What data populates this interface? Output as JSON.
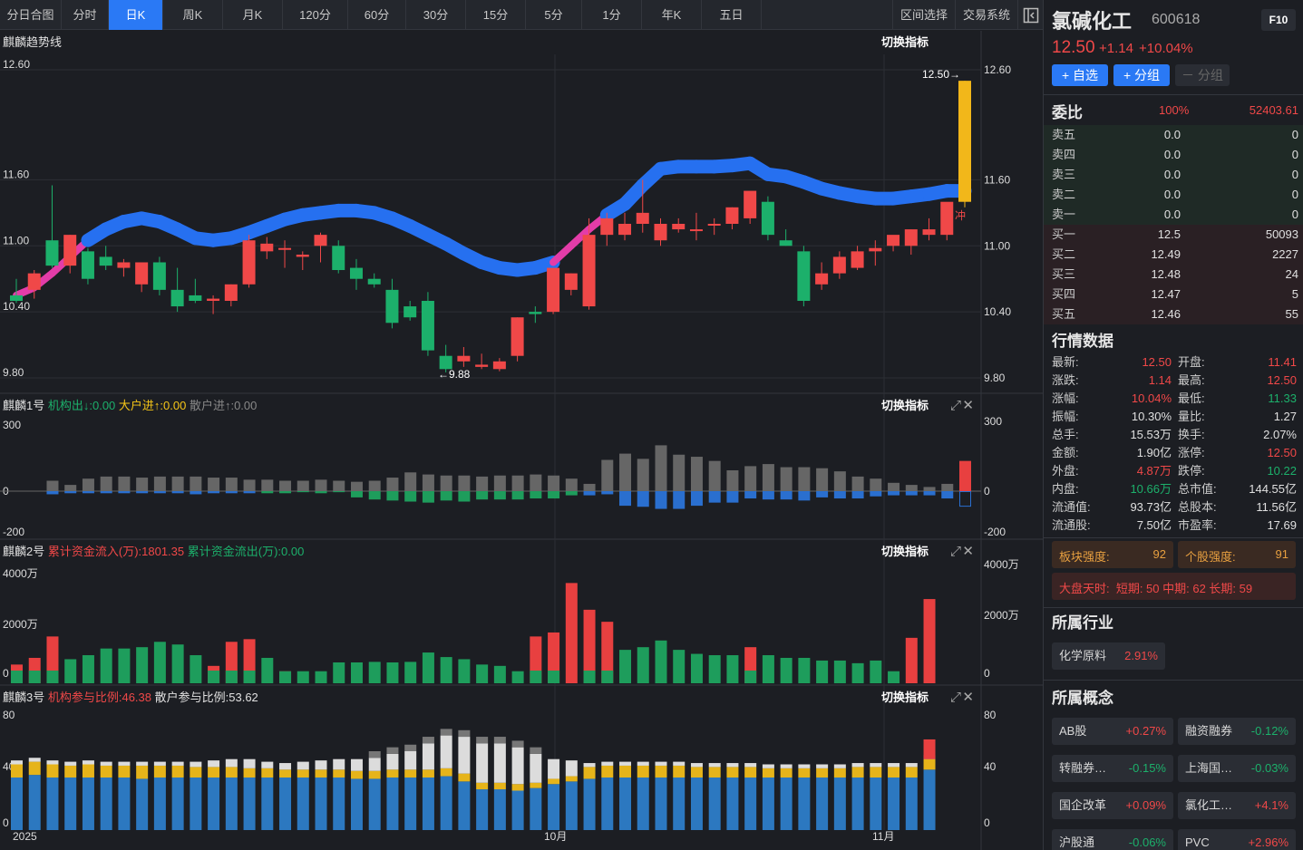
{
  "tabs": [
    "分日合图",
    "分时",
    "日K",
    "周K",
    "月K",
    "120分",
    "60分",
    "30分",
    "15分",
    "5分",
    "1分",
    "年K",
    "五日"
  ],
  "active_tab": "日K",
  "right_tabs": [
    "区间选择",
    "交易系统"
  ],
  "panels": {
    "p1": {
      "title": "麒麟趋势线",
      "switch": "切换指标",
      "yticks": [
        "12.60",
        "11.60",
        "11.00",
        "10.40",
        "9.80"
      ],
      "hi_label": "12.50→",
      "lo_label": "←9.88",
      "tag": "冲"
    },
    "p2": {
      "title": "麒麟1号",
      "s1": "机构出↓:0.00",
      "s2": "大户进↑:0.00",
      "s3": "散户进↑:0.00",
      "switch": "切换指标",
      "yticks": [
        "300",
        "0",
        "-200"
      ]
    },
    "p3": {
      "title": "麒麟2号",
      "s1": "累计资金流入(万):1801.35",
      "s2": "累计资金流出(万):0.00",
      "switch": "切换指标",
      "yticks": [
        "4000万",
        "2000万",
        "0"
      ]
    },
    "p4": {
      "title": "麒麟3号",
      "s1": "机构参与比例:46.38",
      "s2": "散户参与比例:53.62",
      "switch": "切换指标",
      "yticks": [
        "80",
        "40",
        "0"
      ]
    }
  },
  "xaxis": [
    "2025",
    "10月",
    "11月"
  ],
  "stock": {
    "name": "氯碱化工",
    "code": "600618",
    "f10": "F10",
    "price": "12.50",
    "change": "+1.14",
    "pct": "+10.04%"
  },
  "buttons": {
    "watch": "+ 自选",
    "group": "+ 分组",
    "ungroup": "－ 分组"
  },
  "orderbook": {
    "title": "委比",
    "ratio": "100%",
    "diff": "52403.61",
    "rows": [
      [
        "卖五",
        "0.0",
        "0"
      ],
      [
        "卖四",
        "0.0",
        "0"
      ],
      [
        "卖三",
        "0.0",
        "0"
      ],
      [
        "卖二",
        "0.0",
        "0"
      ],
      [
        "卖一",
        "0.0",
        "0"
      ],
      [
        "买一",
        "12.5",
        "50093"
      ],
      [
        "买二",
        "12.49",
        "2227"
      ],
      [
        "买三",
        "12.48",
        "24"
      ],
      [
        "买四",
        "12.47",
        "5"
      ],
      [
        "买五",
        "12.46",
        "55"
      ]
    ]
  },
  "market": {
    "title": "行情数据",
    "rows": [
      [
        "最新:",
        "12.50",
        "开盘:",
        "11.41"
      ],
      [
        "涨跌:",
        "1.14",
        "最高:",
        "12.50"
      ],
      [
        "涨幅:",
        "10.04%",
        "最低:",
        "11.33"
      ],
      [
        "振幅:",
        "10.30%",
        "量比:",
        "1.27"
      ],
      [
        "总手:",
        "15.53万",
        "换手:",
        "2.07%"
      ],
      [
        "金额:",
        "1.90亿",
        "涨停:",
        "12.50"
      ],
      [
        "外盘:",
        "4.87万",
        "跌停:",
        "10.22"
      ],
      [
        "内盘:",
        "10.66万",
        "总市值:",
        "144.55亿"
      ],
      [
        "流通值:",
        "93.73亿",
        "总股本:",
        "11.56亿"
      ],
      [
        "流通股:",
        "7.50亿",
        "市盈率:",
        "17.69"
      ]
    ]
  },
  "strength": {
    "sector_label": "板块强度:",
    "sector": "92",
    "stock_label": "个股强度:",
    "stock": "91",
    "overall": "大盘天时:  短期: 50 中期: 62 长期: 59"
  },
  "industry": {
    "title": "所属行业",
    "items": [
      [
        "化学原料",
        "2.91%"
      ]
    ]
  },
  "concept": {
    "title": "所属概念",
    "items": [
      [
        "AB股",
        "+0.27%"
      ],
      [
        "融资融券",
        "-0.12%"
      ],
      [
        "转融券…",
        "-0.15%"
      ],
      [
        "上海国…",
        "-0.03%"
      ],
      [
        "国企改革",
        "+0.09%"
      ],
      [
        "氯化工…",
        "+4.1%"
      ],
      [
        "沪股通",
        "-0.06%"
      ],
      [
        "PVC",
        "+2.96%"
      ]
    ]
  },
  "chart_data": {
    "type": "candlestick",
    "ylim": [
      9.8,
      12.6
    ],
    "candles": [
      [
        10.55,
        10.7,
        10.5,
        10.48
      ],
      [
        10.6,
        10.78,
        10.75,
        10.52
      ],
      [
        11.05,
        11.55,
        10.82,
        10.8
      ],
      [
        10.82,
        11.1,
        11.1,
        10.75
      ],
      [
        10.95,
        10.98,
        10.7,
        10.65
      ],
      [
        10.9,
        11.0,
        10.82,
        10.78
      ],
      [
        10.8,
        10.88,
        10.85,
        10.72
      ],
      [
        10.65,
        10.7,
        10.85,
        10.58
      ],
      [
        10.85,
        10.9,
        10.6,
        10.55
      ],
      [
        10.6,
        10.8,
        10.45,
        10.4
      ],
      [
        10.55,
        10.7,
        10.5,
        10.48
      ],
      [
        10.5,
        10.55,
        10.52,
        10.38
      ],
      [
        10.5,
        10.65,
        10.65,
        10.45
      ],
      [
        10.65,
        11.1,
        11.05,
        10.62
      ],
      [
        10.95,
        11.08,
        11.02,
        10.88
      ],
      [
        10.98,
        11.05,
        10.98,
        10.8
      ],
      [
        10.9,
        10.95,
        10.92,
        10.78
      ],
      [
        11.0,
        11.12,
        11.1,
        10.85
      ],
      [
        11.0,
        11.05,
        10.78,
        10.75
      ],
      [
        10.8,
        10.88,
        10.7,
        10.6
      ],
      [
        10.7,
        10.75,
        10.65,
        10.62
      ],
      [
        10.6,
        10.7,
        10.3,
        10.25
      ],
      [
        10.45,
        10.5,
        10.35,
        10.32
      ],
      [
        10.5,
        10.58,
        10.05,
        10.0
      ],
      [
        10.0,
        10.1,
        9.88,
        9.85
      ],
      [
        9.95,
        10.08,
        10.0,
        9.9
      ],
      [
        9.9,
        10.02,
        9.92,
        9.88
      ],
      [
        9.88,
        9.98,
        9.95,
        9.86
      ],
      [
        10.0,
        10.35,
        10.35,
        9.95
      ],
      [
        10.4,
        10.45,
        10.38,
        10.3
      ],
      [
        10.4,
        10.8,
        10.8,
        10.38
      ],
      [
        10.6,
        10.75,
        10.75,
        10.55
      ],
      [
        10.45,
        11.25,
        11.1,
        10.42
      ],
      [
        11.1,
        11.3,
        11.25,
        11.0
      ],
      [
        11.1,
        11.3,
        11.2,
        11.05
      ],
      [
        11.2,
        11.6,
        11.3,
        11.12
      ],
      [
        11.05,
        11.25,
        11.2,
        11.0
      ],
      [
        11.15,
        11.25,
        11.2,
        11.12
      ],
      [
        11.15,
        11.3,
        11.15,
        11.05
      ],
      [
        11.2,
        11.25,
        11.2,
        11.1
      ],
      [
        11.2,
        11.35,
        11.35,
        11.15
      ],
      [
        11.25,
        11.45,
        11.5,
        11.2
      ],
      [
        11.4,
        11.45,
        11.1,
        11.05
      ],
      [
        11.05,
        11.15,
        11.0,
        11.0
      ],
      [
        10.95,
        11.0,
        10.5,
        10.45
      ],
      [
        10.65,
        10.85,
        10.75,
        10.6
      ],
      [
        10.75,
        10.95,
        10.9,
        10.7
      ],
      [
        10.8,
        11.0,
        10.95,
        10.78
      ],
      [
        10.95,
        11.05,
        10.98,
        10.82
      ],
      [
        11.0,
        11.05,
        11.1,
        10.95
      ],
      [
        11.0,
        11.15,
        11.15,
        10.92
      ],
      [
        11.1,
        11.25,
        11.15,
        11.05
      ],
      [
        11.1,
        11.15,
        11.4,
        11.05
      ],
      [
        11.4,
        12.5,
        12.5,
        11.35
      ]
    ],
    "trend": [
      10.55,
      10.62,
      10.75,
      10.9,
      11.05,
      11.15,
      11.22,
      11.25,
      11.22,
      11.15,
      11.07,
      11.05,
      11.07,
      11.12,
      11.18,
      11.24,
      11.28,
      11.3,
      11.32,
      11.32,
      11.3,
      11.25,
      11.18,
      11.1,
      11.02,
      10.93,
      10.85,
      10.8,
      10.78,
      10.8,
      10.85,
      11.0,
      11.15,
      11.28,
      11.38,
      11.55,
      11.7,
      11.72,
      11.72,
      11.72,
      11.73,
      11.75,
      11.65,
      11.63,
      11.58,
      11.52,
      11.48,
      11.45,
      11.43,
      11.43,
      11.45,
      11.47,
      11.5,
      11.5
    ],
    "trend_color": [
      0,
      0,
      0,
      0,
      1,
      1,
      1,
      1,
      1,
      1,
      1,
      1,
      1,
      1,
      1,
      1,
      1,
      1,
      1,
      1,
      1,
      1,
      1,
      1,
      1,
      1,
      1,
      1,
      1,
      1,
      0,
      0,
      0,
      1,
      1,
      1,
      1,
      1,
      1,
      1,
      1,
      1,
      1,
      1,
      1,
      1,
      1,
      1,
      1,
      1,
      1,
      1,
      1,
      1
    ],
    "p1_pos": [
      0.5,
      0.3,
      0.6,
      0.7,
      0.7,
      0.65,
      0.7,
      0.7,
      0.7,
      0.65,
      0.65,
      0.55,
      0.55,
      0.5,
      0.5,
      0.55,
      0.5,
      0.45,
      0.5,
      0.65,
      0.9,
      0.8,
      0.75,
      0.75,
      0.7,
      0.75,
      0.75,
      0.8,
      0.75,
      0.6,
      0.35,
      1.5,
      1.8,
      1.55,
      2.2,
      1.75,
      1.65,
      1.45,
      1.0,
      1.2,
      1.3,
      1.15,
      1.15,
      1.1,
      0.95,
      0.7,
      0.6,
      0.4,
      0.3,
      0.2,
      0.35,
      1.45
    ],
    "p1_neg": [
      -0.15,
      -0.1,
      -0.1,
      -0.1,
      -0.1,
      -0.1,
      -0.1,
      -0.1,
      -0.15,
      -0.1,
      -0.1,
      -0.1,
      -0.1,
      -0.1,
      -0.05,
      -0.1,
      -0.05,
      -0.3,
      -0.4,
      -0.45,
      -0.5,
      -0.55,
      -0.45,
      -0.5,
      -0.4,
      -0.4,
      -0.4,
      -0.35,
      -0.35,
      -0.2,
      -0.2,
      -0.15,
      -0.7,
      -0.75,
      -0.85,
      -0.85,
      -0.7,
      -0.55,
      -0.55,
      -0.35,
      -0.4,
      -0.4,
      -0.45,
      -0.3,
      -0.35,
      -0.35,
      -0.25,
      -0.2,
      -0.2,
      -0.2,
      -0.35,
      -0.7
    ],
    "p2_values": [
      0.7,
      0.95,
      1.75,
      0.9,
      1.05,
      1.3,
      1.3,
      1.35,
      1.55,
      1.45,
      1.05,
      0.65,
      1.55,
      1.65,
      0.95,
      0.45,
      0.45,
      0.45,
      0.78,
      0.78,
      0.8,
      0.78,
      0.8,
      1.15,
      0.98,
      0.9,
      0.7,
      0.65,
      0.45,
      1.75,
      1.9,
      3.75,
      2.75,
      2.3,
      1.25,
      1.35,
      1.6,
      1.25,
      1.1,
      1.05,
      1.05,
      1.35,
      1.05,
      0.95,
      0.95,
      0.85,
      0.85,
      0.75,
      0.85,
      0.45,
      1.7,
      3.15
    ],
    "p2_red": [
      1,
      1,
      1,
      0,
      0,
      0,
      0,
      0,
      0,
      0,
      0,
      1,
      1,
      1,
      0,
      1,
      0,
      0,
      0,
      0,
      0,
      0,
      0,
      0,
      0,
      0,
      0,
      0,
      0,
      1,
      1,
      1,
      1,
      1,
      0,
      0,
      0,
      0,
      0,
      0,
      0,
      1,
      0,
      0,
      0,
      0,
      0,
      0,
      0,
      0,
      1,
      1
    ],
    "p3_blue": [
      40,
      42,
      40,
      40,
      40,
      40,
      40,
      39,
      40,
      40,
      40,
      40,
      40,
      40,
      40,
      40,
      40,
      40,
      40,
      39,
      39,
      40,
      40,
      40,
      41,
      37,
      31,
      31,
      30,
      32,
      35,
      37,
      39,
      40,
      40,
      40,
      40,
      40,
      40,
      40,
      40,
      40,
      40,
      40,
      40,
      40,
      40,
      40,
      40,
      40,
      40,
      46
    ],
    "p3_yellow": [
      10,
      10,
      10,
      9,
      10,
      9,
      9,
      10,
      9,
      9,
      8,
      8,
      8,
      7,
      7,
      6,
      6,
      6,
      6,
      6,
      6,
      6,
      6,
      6,
      6,
      6,
      5,
      5,
      5,
      4,
      4,
      4,
      9,
      9,
      9,
      9,
      9,
      9,
      8,
      8,
      8,
      8,
      7,
      7,
      7,
      7,
      7,
      8,
      8,
      8,
      8,
      8
    ]
  }
}
